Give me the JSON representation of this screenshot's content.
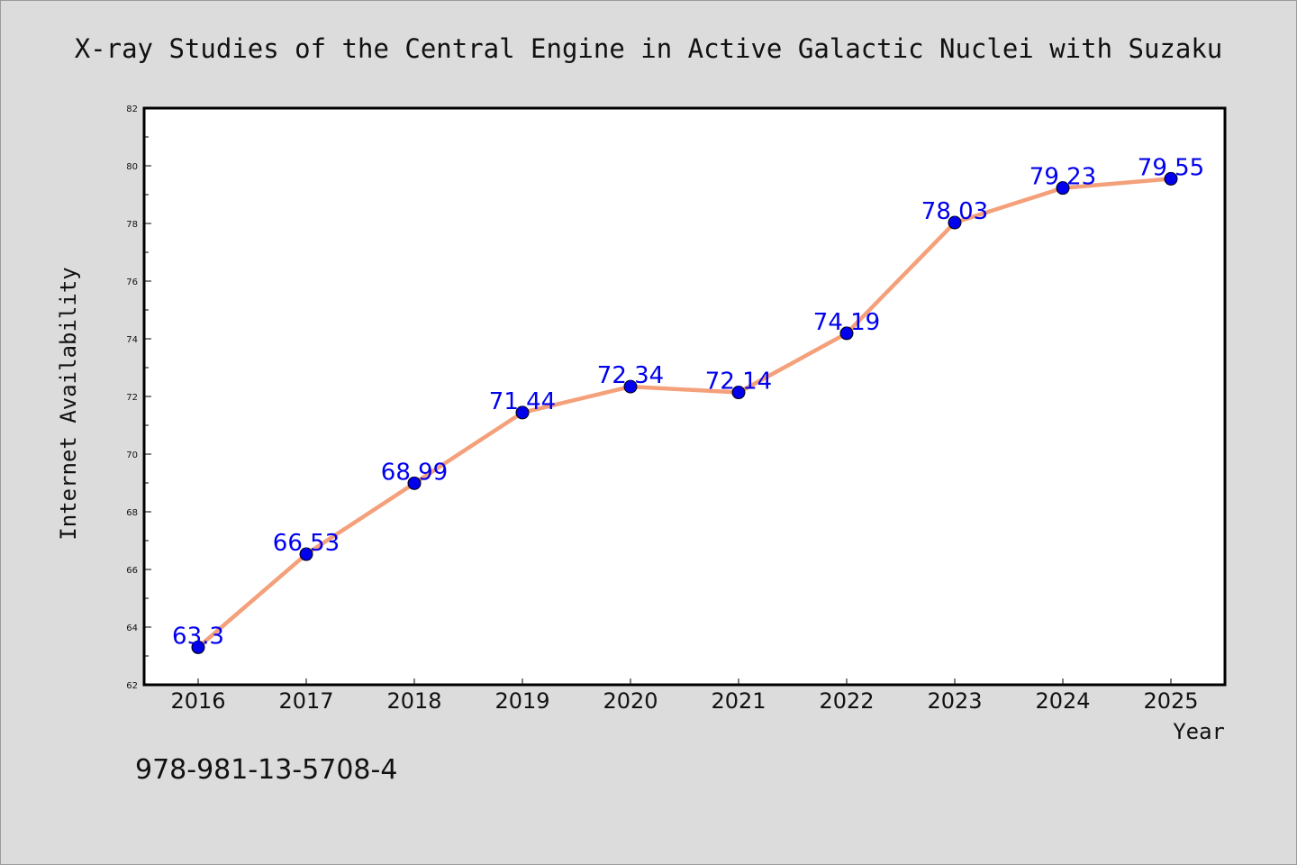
{
  "footer": {
    "isbn": "978-981-13-5708-4"
  },
  "colors": {
    "background": "#dcdcdc",
    "plot_background": "#ffffff",
    "line": "#f4a07a",
    "marker": "#0000ee",
    "data_label": "#0000ee"
  },
  "chart_data": {
    "type": "line",
    "title": "X-ray Studies of the Central Engine in Active Galactic Nuclei with Suzaku",
    "xlabel": "Year",
    "ylabel": "Internet Availability",
    "categories": [
      "2016",
      "2017",
      "2018",
      "2019",
      "2020",
      "2021",
      "2022",
      "2023",
      "2024",
      "2025"
    ],
    "values": [
      63.3,
      66.53,
      68.99,
      71.44,
      72.34,
      72.14,
      74.19,
      78.03,
      79.23,
      79.55
    ],
    "data_labels": [
      "63.3",
      "66.53",
      "68.99",
      "71.44",
      "72.34",
      "72.14",
      "74.19",
      "78.03",
      "79.23",
      "79.55"
    ],
    "ylim": [
      62,
      82
    ],
    "yticks": [
      "62",
      "64",
      "66",
      "68",
      "70",
      "72",
      "74",
      "76",
      "78",
      "80",
      "82"
    ],
    "grid": false,
    "legend": "none"
  }
}
